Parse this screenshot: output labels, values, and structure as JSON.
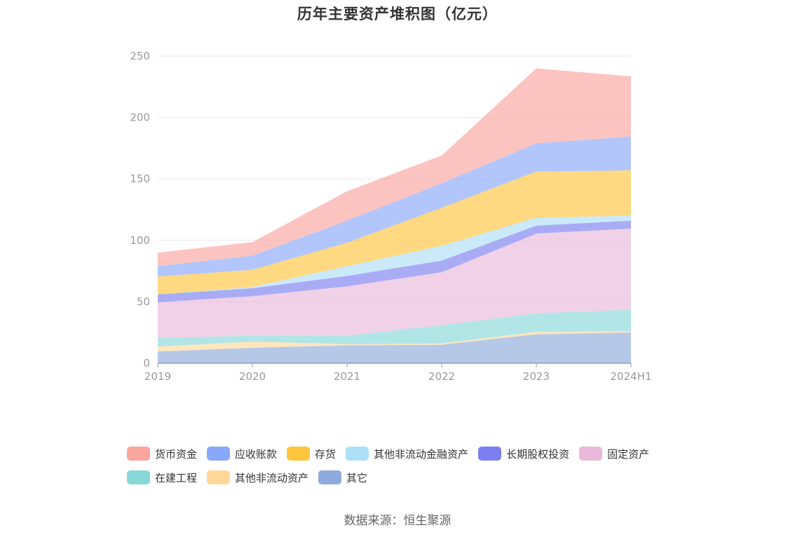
{
  "chart_data": {
    "type": "area",
    "stacked": true,
    "title": "历年主要资产堆积图（亿元）",
    "categories": [
      "2019",
      "2020",
      "2021",
      "2022",
      "2023",
      "2024H1"
    ],
    "y_ticks": [
      "0",
      "50",
      "100",
      "150",
      "200",
      "250"
    ],
    "ylim": [
      0,
      250
    ],
    "grid": true,
    "legend_position": "bottom",
    "series": [
      {
        "name": "其它",
        "color": "#8FAADC",
        "values": [
          9.5,
          12.5,
          14.5,
          15,
          23.5,
          25
        ]
      },
      {
        "name": "其他非流动资产",
        "color": "#FFD899",
        "values": [
          4,
          5,
          1,
          1,
          2,
          1
        ]
      },
      {
        "name": "在建工程",
        "color": "#88D8D8",
        "values": [
          7,
          5,
          7,
          15,
          15,
          17.5
        ]
      },
      {
        "name": "固定资产",
        "color": "#EAB8DA",
        "values": [
          29,
          32,
          40,
          43,
          65,
          66
        ]
      },
      {
        "name": "长期股权投资",
        "color": "#7B7FF0",
        "values": [
          6.5,
          6.5,
          8.5,
          9.5,
          6.5,
          6.5
        ]
      },
      {
        "name": "其他非流动金融资产",
        "color": "#ADDFF7",
        "values": [
          0,
          1,
          8,
          12,
          6.5,
          4
        ]
      },
      {
        "name": "存货",
        "color": "#FFC53D",
        "values": [
          14.5,
          14,
          19,
          31,
          37.5,
          37
        ]
      },
      {
        "name": "应收账款",
        "color": "#8AA8FA",
        "values": [
          8.5,
          11.5,
          18,
          20,
          23,
          27.5
        ]
      },
      {
        "name": "货币资金",
        "color": "#FAA59E",
        "values": [
          11,
          11,
          24,
          22.5,
          61,
          49
        ]
      }
    ],
    "legend_order": [
      "货币资金",
      "应收账款",
      "存货",
      "其他非流动金融资产",
      "长期股权投资",
      "固定资产",
      "在建工程",
      "其他非流动资产",
      "其它"
    ],
    "axis_color": "#8E9BB8",
    "grid_color": "#E3E7F0",
    "source": "数据来源：恒生聚源"
  }
}
